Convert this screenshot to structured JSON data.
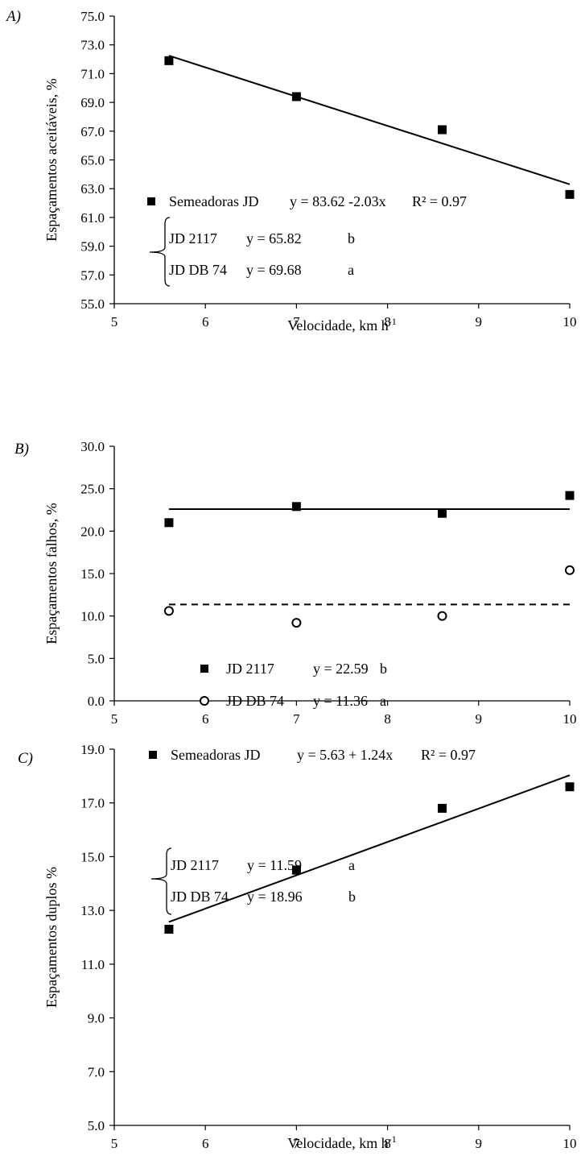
{
  "chart_data": [
    {
      "type": "scatter",
      "panel_label": "A)",
      "xlabel": "Velocidade, km h",
      "xlabel_sup": "-1",
      "ylabel": "Espaçamentos aceitáveis, %",
      "xlim": [
        5,
        10
      ],
      "ylim": [
        55,
        75
      ],
      "x_ticks": [
        "5",
        "6",
        "7",
        "8",
        "9",
        "10"
      ],
      "y_ticks": [
        "55.0",
        "57.0",
        "59.0",
        "61.0",
        "63.0",
        "65.0",
        "67.0",
        "69.0",
        "71.0",
        "73.0",
        "75.0"
      ],
      "grid": false,
      "series": [
        {
          "marker": "square",
          "x": [
            5.6,
            7.0,
            8.6,
            10.0
          ],
          "y": [
            71.9,
            69.4,
            67.1,
            62.6
          ]
        }
      ],
      "fit_lines": [
        {
          "style": "solid",
          "x": [
            5.6,
            10.0
          ],
          "y": [
            72.25,
            63.3
          ]
        }
      ],
      "legend": {
        "main": {
          "marker": "square",
          "name": "Semeadoras JD",
          "equation": "y = 83.62 -2.03x",
          "r2": "R² = 0.97"
        },
        "sub": [
          {
            "name": "JD 2117",
            "equation": "y = 65.82",
            "letter": "b"
          },
          {
            "name": "JD DB 74",
            "equation": "y = 69.68",
            "letter": "a"
          }
        ]
      }
    },
    {
      "type": "scatter",
      "panel_label": "B)",
      "xlabel": "",
      "ylabel": "Espaçamentos falhos, %",
      "xlim": [
        5,
        10
      ],
      "ylim": [
        0,
        30
      ],
      "x_ticks": [
        "5",
        "6",
        "7",
        "8",
        "9",
        "10"
      ],
      "y_ticks": [
        "0.0",
        "5.0",
        "10.0",
        "15.0",
        "20.0",
        "25.0",
        "30.0"
      ],
      "grid": false,
      "series": [
        {
          "name": "JD 2117",
          "marker": "square",
          "x": [
            5.6,
            7.0,
            8.6,
            10.0
          ],
          "y": [
            21.0,
            22.9,
            22.1,
            24.2
          ]
        },
        {
          "name": "JD DB 74",
          "marker": "circle",
          "x": [
            5.6,
            7.0,
            8.6,
            10.0
          ],
          "y": [
            10.6,
            9.2,
            10.0,
            15.4
          ]
        }
      ],
      "fit_lines": [
        {
          "style": "solid",
          "x": [
            5.6,
            10.0
          ],
          "y": [
            22.59,
            22.59
          ]
        },
        {
          "style": "dashed",
          "x": [
            5.6,
            10.0
          ],
          "y": [
            11.36,
            11.36
          ]
        }
      ],
      "legend": {
        "items": [
          {
            "marker": "square",
            "name": "JD 2117",
            "equation": "y = 22.59",
            "letter": "b"
          },
          {
            "marker": "circle",
            "name": "JD DB 74",
            "equation": "y = 11.36",
            "letter": "a"
          }
        ]
      }
    },
    {
      "type": "scatter",
      "panel_label": "C)",
      "xlabel": "Velocidade, km h",
      "xlabel_sup": "-1",
      "ylabel": "Espaçamentos duplos %",
      "xlim": [
        5,
        10
      ],
      "ylim": [
        5,
        19
      ],
      "x_ticks": [
        "5",
        "6",
        "7",
        "8",
        "9",
        "10"
      ],
      "y_ticks": [
        "5.0",
        "7.0",
        "9.0",
        "11.0",
        "13.0",
        "15.0",
        "17.0",
        "19.0"
      ],
      "grid": false,
      "series": [
        {
          "marker": "square",
          "x": [
            5.6,
            7.0,
            8.6,
            10.0
          ],
          "y": [
            12.3,
            14.5,
            16.8,
            17.6
          ]
        }
      ],
      "fit_lines": [
        {
          "style": "solid",
          "x": [
            5.6,
            10.0
          ],
          "y": [
            12.57,
            18.03
          ]
        }
      ],
      "legend": {
        "main": {
          "marker": "square",
          "name": "Semeadoras JD",
          "equation": "y = 5.63 + 1.24x",
          "r2": "R² = 0.97"
        },
        "sub": [
          {
            "name": "JD 2117",
            "equation": "y = 11.59",
            "letter": "a"
          },
          {
            "name": "JD DB 74",
            "equation": "y = 18.96",
            "letter": "b"
          }
        ]
      }
    }
  ]
}
